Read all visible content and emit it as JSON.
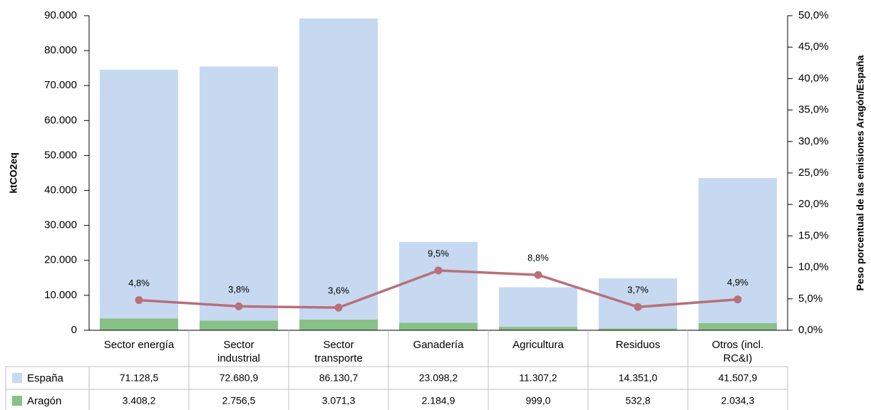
{
  "chart_data": {
    "type": "bar",
    "categories": [
      "Sector energía",
      "Sector industrial",
      "Sector transporte",
      "Ganadería",
      "Agricultura",
      "Residuos",
      "Otros (incl. RC&I)"
    ],
    "series": [
      {
        "name": "España",
        "color": "#c6d9f1",
        "values": [
          71128.5,
          72680.9,
          86130.7,
          23098.2,
          11307.2,
          14351.0,
          41507.9
        ],
        "value_labels": [
          "71.128,5",
          "72.680,9",
          "86.130,7",
          "23.098,2",
          "11.307,2",
          "14.351,0",
          "41.507,9"
        ]
      },
      {
        "name": "Aragón",
        "color": "#88c088",
        "values": [
          3408.2,
          2756.5,
          3071.3,
          2184.9,
          999.0,
          532.8,
          2034.3
        ],
        "value_labels": [
          "3.408,2",
          "2.756,5",
          "3.071,3",
          "2.184,9",
          "999,0",
          "532,8",
          "2.034,3"
        ]
      }
    ],
    "line": {
      "axis": "y2",
      "color": "#b8707a",
      "values": [
        4.8,
        3.8,
        3.6,
        9.5,
        8.8,
        3.7,
        4.9
      ],
      "value_labels": [
        "4,8%",
        "3,8%",
        "3,6%",
        "9,5%",
        "8,8%",
        "3,7%",
        "4,9%"
      ]
    },
    "stacked": true,
    "y_label": "ktCO2eq",
    "y2_label": "Peso porcentual de las emisiones Aragón/España",
    "ylim": [
      0,
      90000
    ],
    "yticks": [
      0,
      {
        "value": 10000,
        "label": "10.000"
      },
      {
        "value": 20000,
        "label": "20.000"
      },
      {
        "value": 30000,
        "label": "30.000"
      },
      {
        "value": 40000,
        "label": "40.000"
      },
      {
        "value": 50000,
        "label": "50.000"
      },
      {
        "value": 60000,
        "label": "60.000"
      },
      {
        "value": 70000,
        "label": "70.000"
      },
      {
        "value": 80000,
        "label": "80.000"
      },
      {
        "value": 90000,
        "label": "90.000"
      }
    ],
    "y2lim": [
      0,
      50
    ],
    "y2ticks": [
      {
        "value": 0,
        "label": "0,0%"
      },
      {
        "value": 5,
        "label": "5,0%"
      },
      {
        "value": 10,
        "label": "10,0%"
      },
      {
        "value": 15,
        "label": "15,0%"
      },
      {
        "value": 20,
        "label": "20,0%"
      },
      {
        "value": 25,
        "label": "25,0%"
      },
      {
        "value": 30,
        "label": "30,0%"
      },
      {
        "value": 35,
        "label": "35,0%"
      },
      {
        "value": 40,
        "label": "40,0%"
      },
      {
        "value": 45,
        "label": "45,0%"
      },
      {
        "value": 50,
        "label": "50,0%"
      }
    ]
  }
}
